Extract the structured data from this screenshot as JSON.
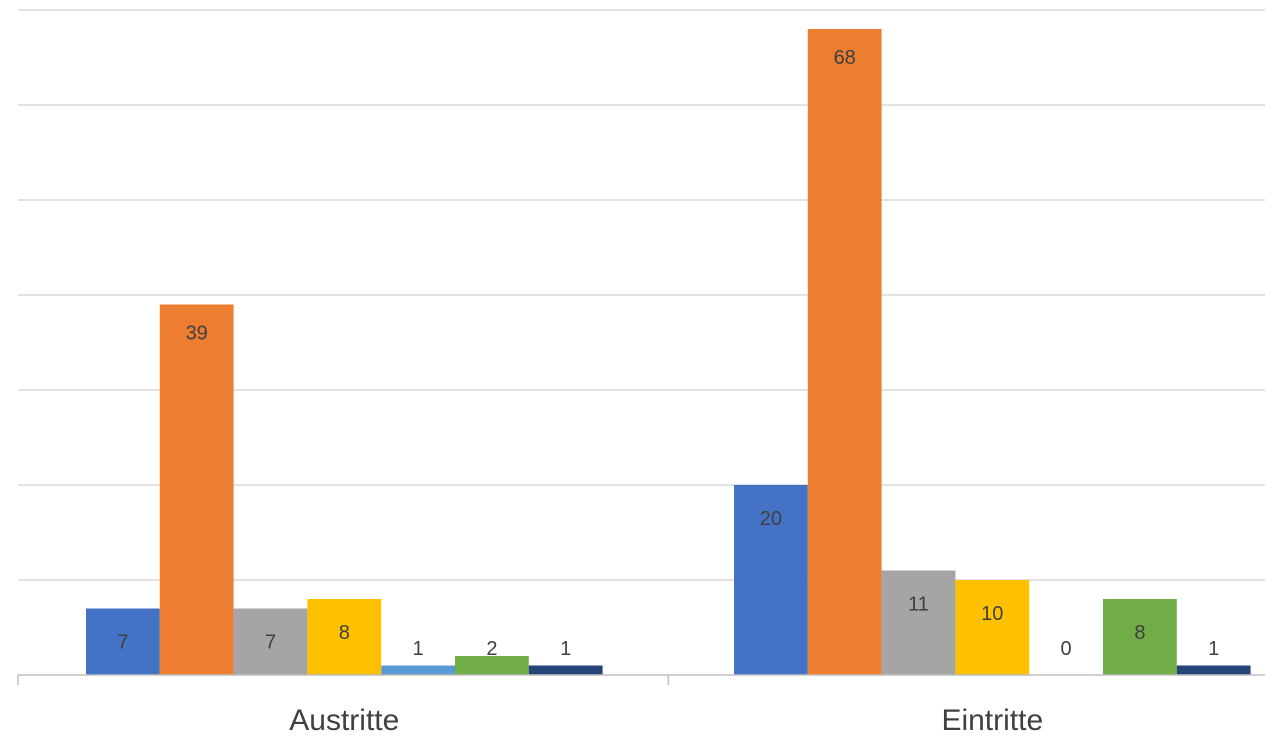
{
  "chart_data": {
    "type": "bar",
    "title": "",
    "xlabel": "",
    "ylabel": "",
    "ylim": [
      0,
      70
    ],
    "grid": true,
    "legend": "none",
    "categories": [
      "Austritte",
      "Eintritte"
    ],
    "series": [
      {
        "color": "#4472c4",
        "values": [
          7,
          20
        ]
      },
      {
        "color": "#ed7d31",
        "values": [
          39,
          68
        ]
      },
      {
        "color": "#a5a5a5",
        "values": [
          7,
          11
        ]
      },
      {
        "color": "#ffc000",
        "values": [
          8,
          10
        ]
      },
      {
        "color": "#5b9bd5",
        "values": [
          1,
          0
        ]
      },
      {
        "color": "#70ad47",
        "values": [
          2,
          8
        ]
      },
      {
        "color": "#264478",
        "values": [
          1,
          1
        ]
      }
    ]
  }
}
